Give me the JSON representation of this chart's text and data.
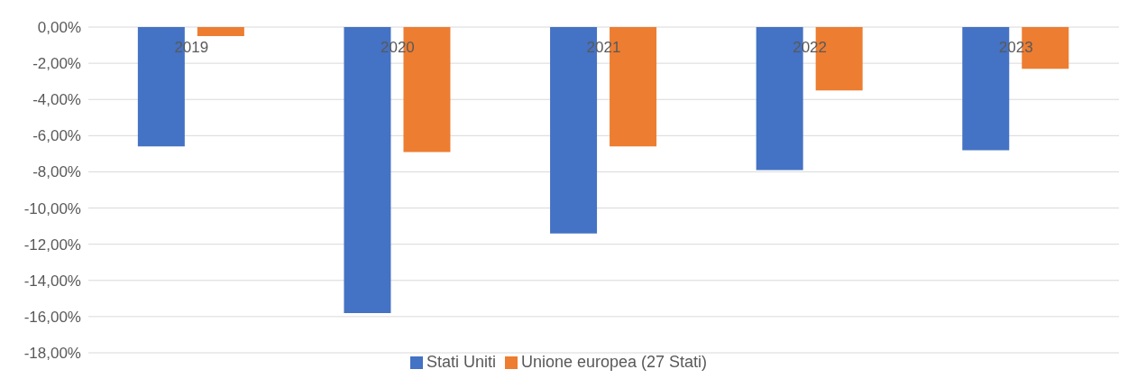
{
  "chart_data": {
    "type": "bar",
    "categories": [
      "2019",
      "2020",
      "2021",
      "2022",
      "2023"
    ],
    "series": [
      {
        "name": "Stati Uniti",
        "color": "#4472c4",
        "values": [
          -6.6,
          -15.8,
          -11.4,
          -7.9,
          -6.8
        ]
      },
      {
        "name": "Unione europea (27 Stati)",
        "color": "#ed7d31",
        "values": [
          -0.5,
          -6.9,
          -6.6,
          -3.5,
          -2.3
        ]
      }
    ],
    "ylim": [
      -18,
      0
    ],
    "yticks": [
      {
        "value": 0,
        "label": "0,00%"
      },
      {
        "value": -2,
        "label": "-2,00%"
      },
      {
        "value": -4,
        "label": "-4,00%"
      },
      {
        "value": -6,
        "label": "-6,00%"
      },
      {
        "value": -8,
        "label": "-8,00%"
      },
      {
        "value": -10,
        "label": "-10,00%"
      },
      {
        "value": -12,
        "label": "-12,00%"
      },
      {
        "value": -14,
        "label": "-14,00%"
      },
      {
        "value": -16,
        "label": "-16,00%"
      },
      {
        "value": -18,
        "label": "-18,00%"
      }
    ],
    "grid": "y",
    "legend": "bottom"
  }
}
